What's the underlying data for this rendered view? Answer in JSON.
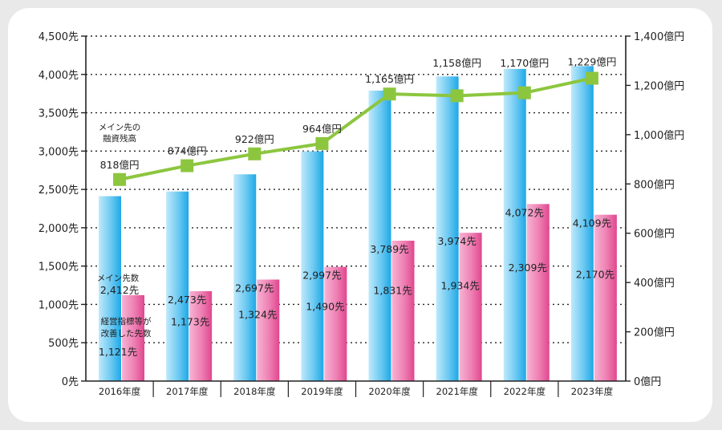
{
  "chart_data": {
    "type": "bar",
    "categories": [
      "2016年度",
      "2017年度",
      "2018年度",
      "2019年度",
      "2020年度",
      "2021年度",
      "2022年度",
      "2023年度"
    ],
    "series": [
      {
        "name": "メイン先数",
        "axis": "left",
        "type": "bar",
        "color": "#38b6ec",
        "values": [
          2412,
          2473,
          2697,
          2997,
          3789,
          3974,
          4072,
          4109
        ],
        "labels": [
          "2,412先",
          "2,473先",
          "2,697先",
          "2,997先",
          "3,789先",
          "3,974先",
          "4,072先",
          "4,109先"
        ]
      },
      {
        "name": "経営指標等が改善した先数",
        "axis": "left",
        "type": "bar",
        "color": "#e8569a",
        "values": [
          1121,
          1173,
          1324,
          1490,
          1831,
          1934,
          2309,
          2170
        ],
        "labels": [
          "1,121先",
          "1,173先",
          "1,324先",
          "1,490先",
          "1,831先",
          "1,934先",
          "2,309先",
          "2,170先"
        ]
      },
      {
        "name": "メイン先の融資残高",
        "axis": "right",
        "type": "line",
        "color": "#8cc63f",
        "values": [
          818,
          874,
          922,
          964,
          1165,
          1158,
          1170,
          1229
        ],
        "labels": [
          "818億円",
          "874億円",
          "922億円",
          "964億円",
          "1,165億円",
          "1,158億円",
          "1,170億円",
          "1,229億円"
        ]
      }
    ],
    "y_left": {
      "ylim": [
        0,
        4500
      ],
      "ticks": [
        "0先",
        "500先",
        "1,000先",
        "1,500先",
        "2,000先",
        "2,500先",
        "3,000先",
        "3,500先",
        "4,000先",
        "4,500先"
      ]
    },
    "y_right": {
      "ylim": [
        0,
        1400
      ],
      "ticks": [
        "0億円",
        "200億円",
        "400億円",
        "600億円",
        "800億円",
        "1,000億円",
        "1,200億円",
        "1,400億円"
      ]
    },
    "grid": "dotted horizontal",
    "annotations": {
      "line_note": [
        "メイン先の",
        "融資残高"
      ],
      "blue_note": "メイン先数",
      "pink_note": [
        "経営指標等が",
        "改善した先数"
      ]
    }
  }
}
